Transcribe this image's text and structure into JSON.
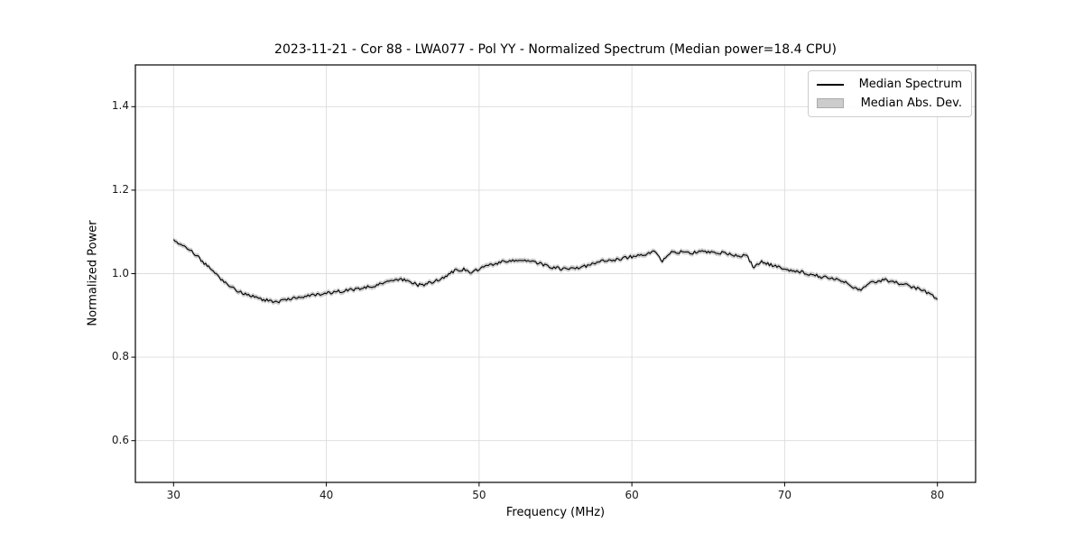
{
  "chart_data": {
    "type": "line",
    "title": "2023-11-21 - Cor 88 - LWA077 - Pol YY - Normalized Spectrum (Median power=18.4 CPU)",
    "xlabel": "Frequency (MHz)",
    "ylabel": "Normalized Power",
    "xlim": [
      27.5,
      82.5
    ],
    "ylim": [
      0.5,
      1.5
    ],
    "xticks": [
      30,
      40,
      50,
      60,
      70,
      80
    ],
    "xtick_labels": [
      "30",
      "40",
      "50",
      "60",
      "70",
      "80"
    ],
    "yticks": [
      0.6,
      0.8,
      1.0,
      1.2,
      1.4
    ],
    "ytick_labels": [
      "0.6",
      "0.8",
      "1.0",
      "1.2",
      "1.4"
    ],
    "grid": true,
    "grid_color": "#dcdcdc",
    "spine_color": "#000000",
    "background_color": "#ffffff",
    "legend_position": "upper right",
    "legend": [
      {
        "label": "Median Spectrum",
        "type": "line",
        "color": "#000000"
      },
      {
        "label": "Median Abs. Dev.",
        "type": "patch",
        "fill": "#cccccc",
        "edge": "#ababab"
      }
    ],
    "median_power_cpu": 18.4,
    "noise_amp": 0.0038,
    "series": [
      {
        "name": "Median Spectrum",
        "type": "line",
        "color": "#000000",
        "x_start": 30,
        "x_step": 0.5,
        "values": [
          1.078,
          1.069,
          1.06,
          1.044,
          1.025,
          1.008,
          0.99,
          0.975,
          0.963,
          0.954,
          0.948,
          0.942,
          0.937,
          0.933,
          0.934,
          0.938,
          0.942,
          0.946,
          0.948,
          0.951,
          0.953,
          0.956,
          0.958,
          0.961,
          0.963,
          0.968,
          0.97,
          0.974,
          0.984,
          0.987,
          0.985,
          0.982,
          0.972,
          0.975,
          0.981,
          0.987,
          0.999,
          1.008,
          1.011,
          1.001,
          1.012,
          1.018,
          1.024,
          1.028,
          1.03,
          1.032,
          1.032,
          1.03,
          1.024,
          1.018,
          1.014,
          1.012,
          1.013,
          1.012,
          1.018,
          1.024,
          1.03,
          1.032,
          1.034,
          1.037,
          1.041,
          1.043,
          1.046,
          1.053,
          1.031,
          1.05,
          1.051,
          1.053,
          1.05,
          1.054,
          1.051,
          1.048,
          1.05,
          1.046,
          1.043,
          1.044,
          1.014,
          1.029,
          1.022,
          1.016,
          1.011,
          1.008,
          1.005,
          1.0,
          0.996,
          0.991,
          0.99,
          0.985,
          0.979,
          0.965,
          0.962,
          0.976,
          0.981,
          0.986,
          0.981,
          0.976,
          0.972,
          0.966,
          0.961,
          0.951,
          0.938
        ]
      },
      {
        "name": "Median Abs. Dev.",
        "type": "band",
        "around": "Median Spectrum",
        "mad": 0.006,
        "fill": "#cccccc"
      }
    ]
  }
}
